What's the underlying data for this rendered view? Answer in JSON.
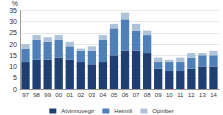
{
  "chart_data": {
    "type": "bar",
    "stacked": true,
    "grid": true,
    "legend": "bottom",
    "ylabel": "%",
    "categories": [
      "97",
      "98",
      "99",
      "00",
      "01",
      "02",
      "03",
      "04",
      "05",
      "06",
      "07",
      "08",
      "09",
      "10",
      "11",
      "12",
      "13",
      "14"
    ],
    "series": [
      {
        "name": "Atvinnuvegir",
        "color": "#1f3f73",
        "values": [
          12,
          13,
          13,
          14,
          13,
          12,
          11,
          12,
          15,
          17,
          17,
          16,
          9,
          8,
          8,
          9,
          10,
          10
        ]
      },
      {
        "name": "Heimili",
        "color": "#4f7fb8",
        "values": [
          6,
          9,
          8,
          8,
          6,
          5,
          6,
          10,
          12,
          14,
          9,
          8,
          3,
          4,
          4,
          5,
          5,
          5
        ]
      },
      {
        "name": "Opinber",
        "color": "#aec3d9",
        "values": [
          2,
          2,
          2,
          2,
          2,
          1,
          2,
          2,
          2,
          3,
          3,
          2,
          2,
          1,
          2,
          2,
          1,
          2
        ]
      }
    ],
    "ylim": [
      0,
      35
    ],
    "yticks": [
      0,
      5,
      10,
      15,
      20,
      25,
      30,
      35
    ]
  }
}
